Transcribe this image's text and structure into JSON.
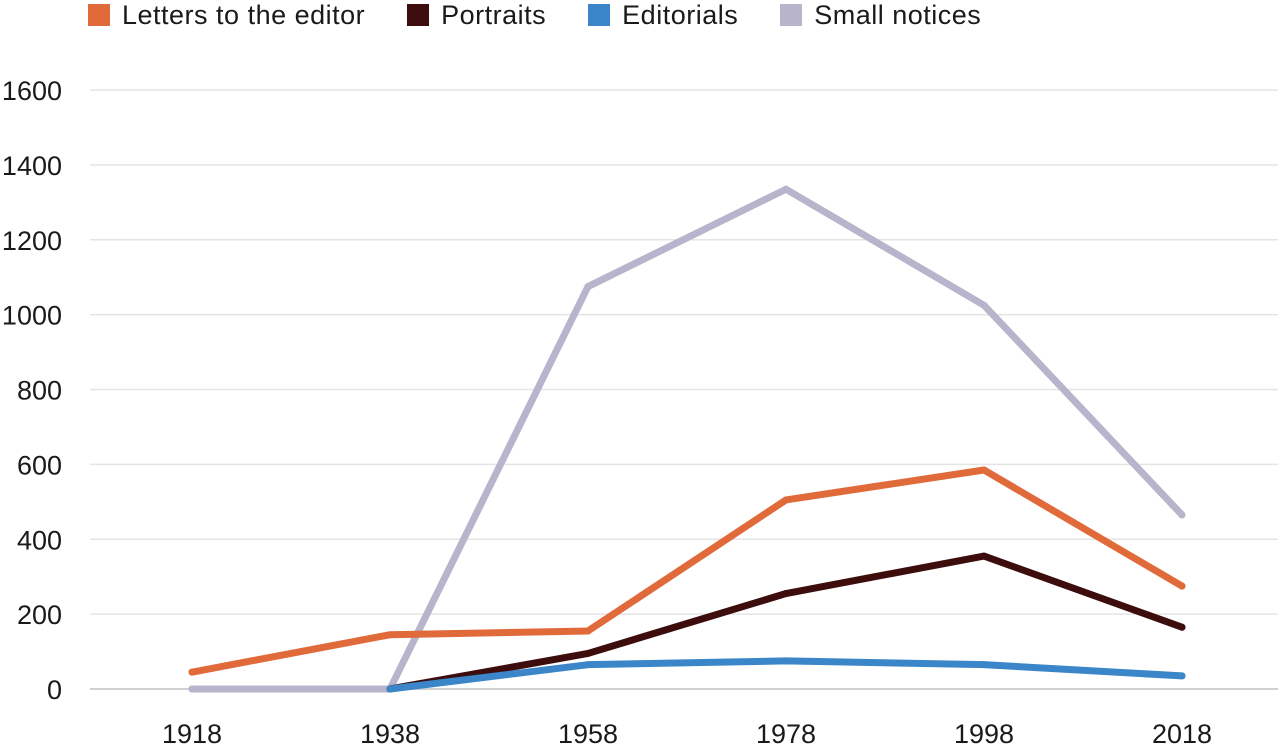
{
  "chart_data": {
    "type": "line",
    "title": "",
    "xlabel": "",
    "ylabel": "",
    "x": [
      "1918",
      "1938",
      "1958",
      "1978",
      "1998",
      "2018"
    ],
    "ylim": [
      0,
      1600
    ],
    "yticks": [
      0,
      200,
      400,
      600,
      800,
      1000,
      1200,
      1400,
      1600
    ],
    "ytick_labels": [
      "0",
      "200",
      "400",
      "600",
      "800",
      "1000",
      "1200",
      "1400",
      "1600"
    ],
    "grid": true,
    "legend_position": "top",
    "series": [
      {
        "name": "Letters to the editor",
        "color": "#e06a3a",
        "values": [
          45,
          145,
          155,
          505,
          585,
          275
        ]
      },
      {
        "name": "Portraits",
        "color": "#3d0d0d",
        "values": [
          null,
          0,
          95,
          255,
          355,
          165
        ]
      },
      {
        "name": "Editorials",
        "color": "#3a86c8",
        "values": [
          null,
          0,
          65,
          75,
          65,
          35
        ]
      },
      {
        "name": "Small notices",
        "color": "#b8b4cc",
        "values": [
          0,
          0,
          1075,
          1335,
          1025,
          465
        ]
      }
    ]
  }
}
